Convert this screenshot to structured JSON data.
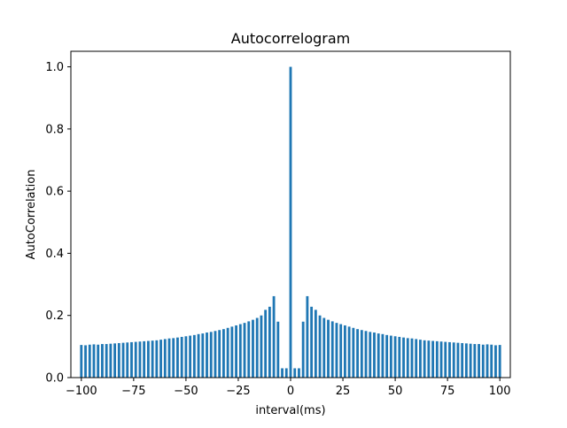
{
  "chart_data": {
    "type": "bar",
    "title": "Autocorrelogram",
    "xlabel": "interval(ms)",
    "ylabel": "AutoCorrelation",
    "xlim": [
      -105,
      105
    ],
    "ylim": [
      0,
      1.05
    ],
    "xticks": [
      -100,
      -75,
      -50,
      -25,
      0,
      25,
      50,
      75,
      100
    ],
    "xtick_labels": [
      "−100",
      "−75",
      "−50",
      "−25",
      "0",
      "25",
      "50",
      "75",
      "100"
    ],
    "yticks": [
      0.0,
      0.2,
      0.4,
      0.6,
      0.8,
      1.0
    ],
    "ytick_labels": [
      "0.0",
      "0.2",
      "0.4",
      "0.6",
      "0.8",
      "1.0"
    ],
    "bar_width_ms": 1.2,
    "grid": false,
    "color": "#1f77b4",
    "x": [
      -100,
      -98,
      -96,
      -94,
      -92,
      -90,
      -88,
      -86,
      -84,
      -82,
      -80,
      -78,
      -76,
      -74,
      -72,
      -70,
      -68,
      -66,
      -64,
      -62,
      -60,
      -58,
      -56,
      -54,
      -52,
      -50,
      -48,
      -46,
      -44,
      -42,
      -40,
      -38,
      -36,
      -34,
      -32,
      -30,
      -28,
      -26,
      -24,
      -22,
      -20,
      -18,
      -16,
      -14,
      -12,
      -10,
      -8,
      -6,
      -4,
      -2,
      0,
      2,
      4,
      6,
      8,
      10,
      12,
      14,
      16,
      18,
      20,
      22,
      24,
      26,
      28,
      30,
      32,
      34,
      36,
      38,
      40,
      42,
      44,
      46,
      48,
      50,
      52,
      54,
      56,
      58,
      60,
      62,
      64,
      66,
      68,
      70,
      72,
      74,
      76,
      78,
      80,
      82,
      84,
      86,
      88,
      90,
      92,
      94,
      96,
      98,
      100
    ],
    "values": [
      0.105,
      0.104,
      0.106,
      0.107,
      0.106,
      0.108,
      0.108,
      0.109,
      0.11,
      0.111,
      0.112,
      0.113,
      0.114,
      0.115,
      0.116,
      0.117,
      0.118,
      0.119,
      0.12,
      0.122,
      0.124,
      0.126,
      0.127,
      0.129,
      0.131,
      0.133,
      0.135,
      0.137,
      0.14,
      0.142,
      0.145,
      0.147,
      0.15,
      0.153,
      0.156,
      0.16,
      0.164,
      0.168,
      0.172,
      0.176,
      0.181,
      0.186,
      0.192,
      0.2,
      0.218,
      0.228,
      0.262,
      0.18,
      0.03,
      0.03,
      1.0,
      0.03,
      0.03,
      0.18,
      0.262,
      0.228,
      0.218,
      0.2,
      0.192,
      0.186,
      0.181,
      0.176,
      0.172,
      0.168,
      0.164,
      0.16,
      0.156,
      0.153,
      0.15,
      0.147,
      0.145,
      0.142,
      0.14,
      0.137,
      0.135,
      0.133,
      0.131,
      0.129,
      0.127,
      0.126,
      0.124,
      0.122,
      0.12,
      0.119,
      0.118,
      0.117,
      0.116,
      0.115,
      0.114,
      0.113,
      0.112,
      0.111,
      0.11,
      0.109,
      0.108,
      0.108,
      0.106,
      0.107,
      0.106,
      0.104,
      0.105
    ]
  }
}
